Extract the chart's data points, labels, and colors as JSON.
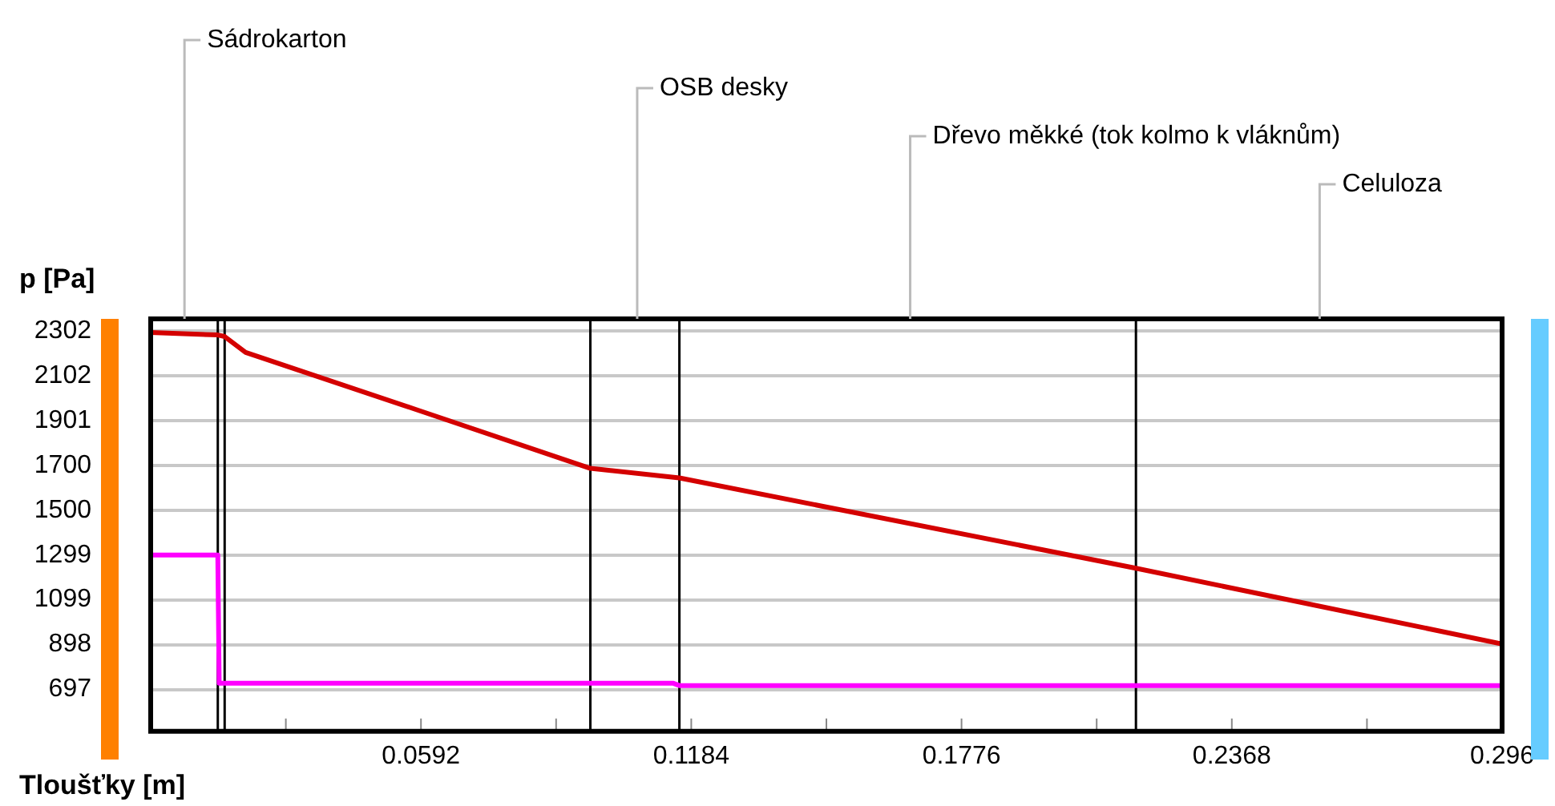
{
  "chart_data": {
    "type": "line",
    "xlabel": "Tloušťky [m]",
    "ylabel": "p [Pa]",
    "xlim": [
      0,
      0.296
    ],
    "xticks": [
      {
        "value": 0,
        "label": null
      },
      {
        "value": 0.0296,
        "label": null
      },
      0.0592,
      {
        "value": 0.0888,
        "label": null
      },
      0.1184,
      {
        "value": 0.148,
        "label": null
      },
      0.1776,
      {
        "value": 0.2072,
        "label": null
      },
      0.2368,
      {
        "value": 0.2664,
        "label": null
      },
      0.296
    ],
    "ylim": [
      510,
      2356
    ],
    "yticks": [
      697,
      898,
      1099,
      1299,
      1500,
      1700,
      1901,
      2102,
      2302
    ],
    "grid": "y",
    "legend": false,
    "marker": "none",
    "line_style": "solid",
    "series": [
      {
        "color": "#d40000",
        "x": [
          0,
          0.0147,
          0.0162,
          0.0208,
          0.0583,
          0.0963,
          0.1158,
          0.2158,
          0.296
        ],
        "values": [
          2295,
          2284,
          2277,
          2206,
          1949,
          1687,
          1644,
          1240,
          901
        ]
      },
      {
        "color": "#ff00ff",
        "x": [
          0,
          0.0147,
          0.015,
          0.1145,
          0.1158,
          0.296
        ],
        "values": [
          1299,
          1299,
          725,
          725,
          715,
          715
        ]
      }
    ],
    "ref_lines": [
      {
        "axis": "x",
        "value": 0.0147,
        "color": "#000000"
      },
      {
        "axis": "x",
        "value": 0.0162,
        "color": "#000000"
      },
      {
        "axis": "x",
        "value": 0.0963,
        "color": "#000000"
      },
      {
        "axis": "x",
        "value": 0.1158,
        "color": "#000000"
      },
      {
        "axis": "x",
        "value": 0.2158,
        "color": "#000000"
      }
    ],
    "annotations": [
      "Sádrokarton",
      "OSB desky",
      "Dřevo měkké (tok kolmo k vláknům)",
      "Celuloza"
    ]
  }
}
